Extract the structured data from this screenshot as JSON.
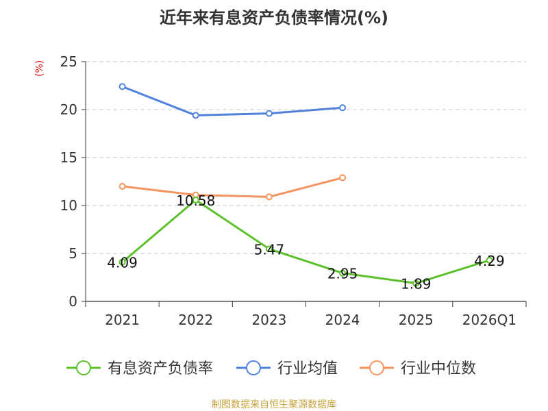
{
  "chart_data": {
    "type": "line",
    "title": "近年来有息资产负债率情况(%)",
    "ylabel": "(%)",
    "xlabel": "",
    "categories": [
      "2021",
      "2022",
      "2023",
      "2024",
      "2025",
      "2026Q1"
    ],
    "ylim": [
      0,
      25
    ],
    "yticks": [
      0,
      5,
      10,
      15,
      20,
      25
    ],
    "grid": true,
    "legend_position": "bottom",
    "series": [
      {
        "name": "有息资产负债率",
        "color": "#5cc02b",
        "values": [
          4.09,
          10.58,
          5.47,
          2.95,
          1.89,
          4.29
        ],
        "data_labels": [
          "4.09",
          "10.58",
          "5.47",
          "2.95",
          "1.89",
          "4.29"
        ]
      },
      {
        "name": "行业均值",
        "color": "#4f81dd",
        "values": [
          22.4,
          19.4,
          19.6,
          20.2,
          null,
          null
        ]
      },
      {
        "name": "行业中位数",
        "color": "#f5935e",
        "values": [
          12.0,
          11.1,
          10.9,
          12.9,
          null,
          null
        ]
      }
    ],
    "source": "制图数据来自恒生聚源数据库"
  }
}
